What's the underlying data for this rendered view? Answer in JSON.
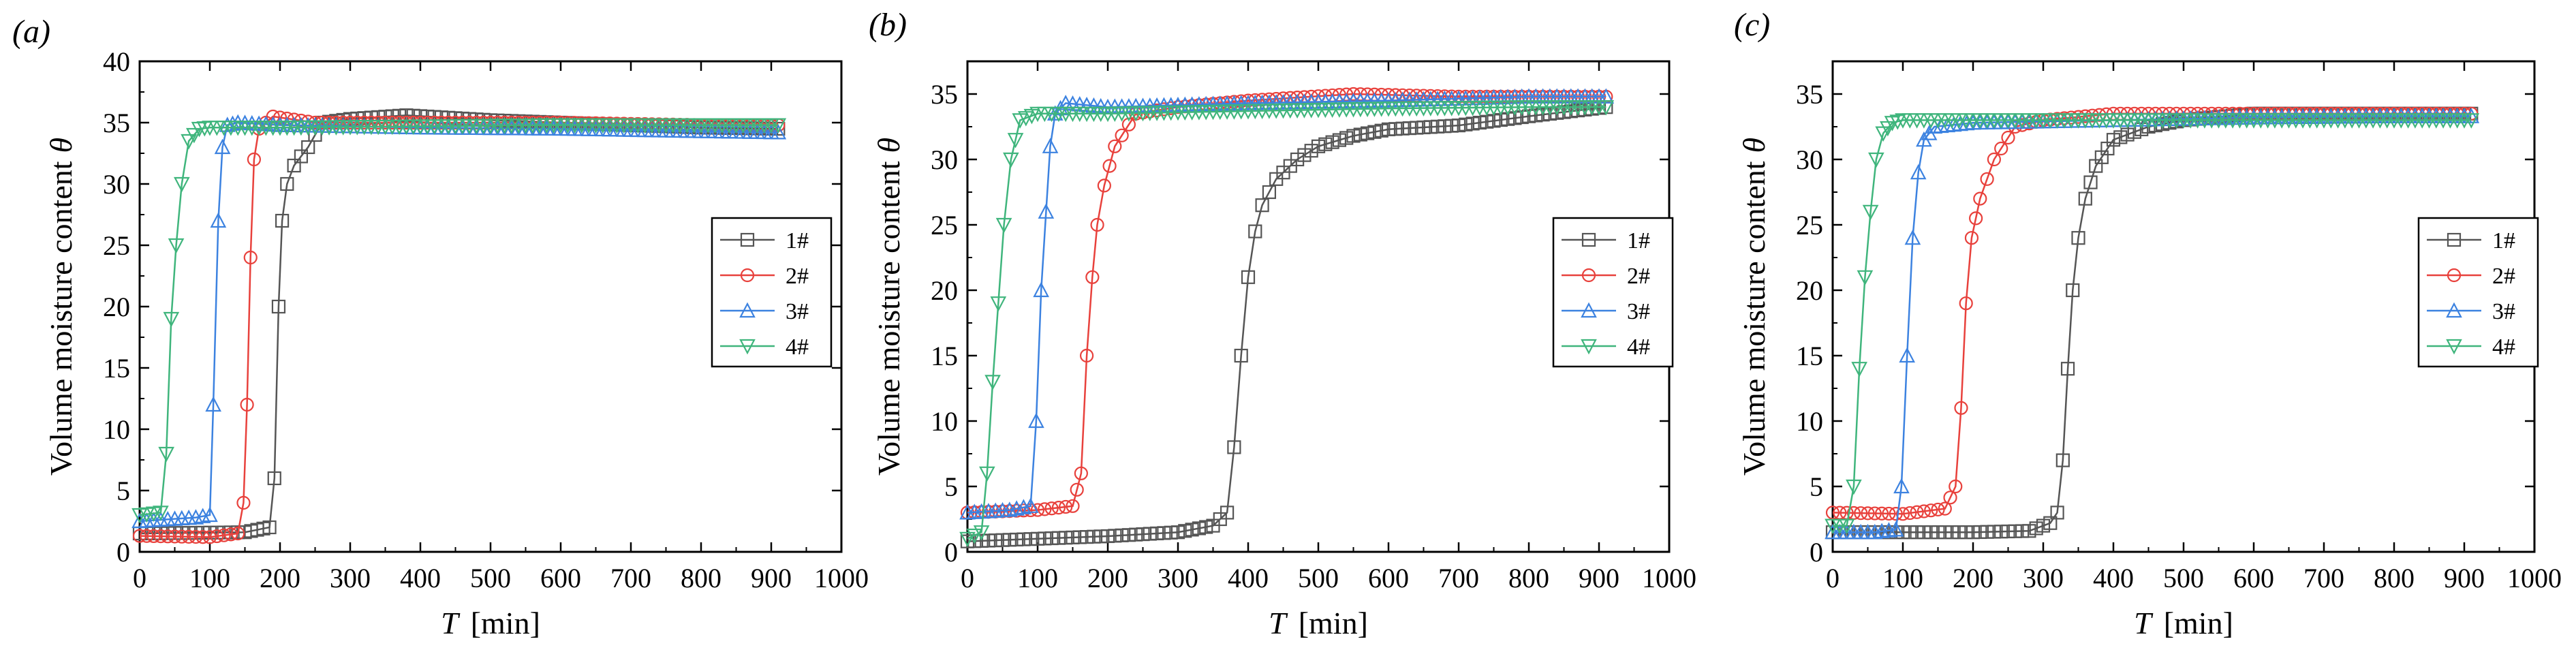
{
  "chart_data": [
    {
      "type": "line",
      "panel_label": "(a)",
      "xlabel_var": "T",
      "xlabel_unit": "[min]",
      "ylabel_text": "Volume moisture content",
      "ylabel_var": "θ",
      "xlim": [
        0,
        1000
      ],
      "ylim": [
        0,
        40
      ],
      "xticks": [
        0,
        100,
        200,
        300,
        400,
        500,
        600,
        700,
        800,
        900,
        1000
      ],
      "yticks": [
        0,
        5,
        10,
        15,
        20,
        25,
        30,
        35,
        40
      ],
      "legend_position": "right",
      "grid": false,
      "series": [
        {
          "name": "1#",
          "color": "#555555",
          "marker": "square",
          "x": [
            0,
            150,
            185,
            192,
            198,
            203,
            210,
            220,
            240,
            260,
            300,
            380,
            500,
            600,
            700,
            800,
            910
          ],
          "y": [
            1.5,
            1.6,
            2.0,
            6.0,
            20.0,
            27.0,
            30.0,
            31.5,
            33.0,
            35.0,
            35.3,
            35.6,
            35.2,
            35.0,
            34.8,
            34.6,
            34.5
          ]
        },
        {
          "name": "2#",
          "color": "#e8413c",
          "marker": "circle",
          "x": [
            0,
            100,
            140,
            148,
            153,
            158,
            163,
            170,
            190,
            250,
            400,
            600,
            800,
            910
          ],
          "y": [
            1.3,
            1.2,
            1.5,
            4.0,
            12.0,
            24.0,
            32.0,
            34.5,
            35.5,
            35.0,
            35.0,
            35.0,
            34.8,
            34.8
          ]
        },
        {
          "name": "3#",
          "color": "#3c82e0",
          "marker": "triangle-up",
          "x": [
            0,
            80,
            100,
            105,
            112,
            118,
            125,
            140,
            200,
            400,
            600,
            800,
            910
          ],
          "y": [
            2.5,
            2.8,
            3.0,
            12.0,
            27.0,
            33.0,
            34.8,
            35.0,
            34.8,
            34.6,
            34.5,
            34.3,
            34.2
          ]
        },
        {
          "name": "4#",
          "color": "#3fb57c",
          "marker": "triangle-down",
          "x": [
            0,
            30,
            38,
            45,
            52,
            60,
            70,
            85,
            100,
            200,
            400,
            600,
            800,
            910
          ],
          "y": [
            3.0,
            3.2,
            8.0,
            19.0,
            25.0,
            30.0,
            33.5,
            34.5,
            34.6,
            34.6,
            34.7,
            34.8,
            34.8,
            34.8
          ]
        }
      ]
    },
    {
      "type": "line",
      "panel_label": "(b)",
      "xlabel_var": "T",
      "xlabel_unit": "[min]",
      "ylabel_text": "Volume moisture content",
      "ylabel_var": "θ",
      "xlim": [
        0,
        1000
      ],
      "ylim": [
        0,
        37.5
      ],
      "xticks": [
        0,
        100,
        200,
        300,
        400,
        500,
        600,
        700,
        800,
        900,
        1000
      ],
      "yticks": [
        0,
        5,
        10,
        15,
        20,
        25,
        30,
        35
      ],
      "legend_position": "right",
      "grid": false,
      "series": [
        {
          "name": "1#",
          "color": "#555555",
          "marker": "square",
          "x": [
            0,
            100,
            200,
            300,
            350,
            370,
            380,
            390,
            400,
            410,
            420,
            440,
            470,
            500,
            550,
            600,
            700,
            800,
            910
          ],
          "y": [
            0.8,
            1.0,
            1.2,
            1.5,
            2.0,
            3.0,
            8.0,
            15.0,
            21.0,
            24.5,
            26.5,
            28.5,
            30.0,
            31.0,
            31.8,
            32.3,
            32.6,
            33.3,
            34.0
          ]
        },
        {
          "name": "2#",
          "color": "#e8413c",
          "marker": "circle",
          "x": [
            0,
            100,
            150,
            162,
            170,
            178,
            185,
            195,
            210,
            240,
            300,
            400,
            550,
            700,
            800,
            910
          ],
          "y": [
            3.0,
            3.2,
            3.5,
            6.0,
            15.0,
            21.0,
            25.0,
            28.0,
            31.0,
            33.5,
            34.0,
            34.5,
            35.0,
            34.8,
            34.8,
            34.8
          ]
        },
        {
          "name": "3#",
          "color": "#3c82e0",
          "marker": "triangle-up",
          "x": [
            0,
            60,
            90,
            98,
            105,
            112,
            118,
            125,
            140,
            200,
            400,
            600,
            800,
            910
          ],
          "y": [
            3.0,
            3.2,
            3.5,
            10.0,
            20.0,
            26.0,
            31.0,
            33.5,
            34.3,
            34.0,
            34.3,
            34.5,
            34.8,
            34.8
          ]
        },
        {
          "name": "4#",
          "color": "#3fb57c",
          "marker": "triangle-down",
          "x": [
            0,
            20,
            28,
            36,
            44,
            52,
            62,
            75,
            100,
            200,
            400,
            600,
            800,
            910
          ],
          "y": [
            1.0,
            1.5,
            6.0,
            13.0,
            19.0,
            25.0,
            30.0,
            33.0,
            33.5,
            33.5,
            33.7,
            33.9,
            34.0,
            34.0
          ]
        }
      ]
    },
    {
      "type": "line",
      "panel_label": "(c)",
      "xlabel_var": "T",
      "xlabel_unit": "[min]",
      "ylabel_text": "Volume moisture content",
      "ylabel_var": "θ",
      "xlim": [
        0,
        1000
      ],
      "ylim": [
        0,
        37.5
      ],
      "xticks": [
        0,
        100,
        200,
        300,
        400,
        500,
        600,
        700,
        800,
        900,
        1000
      ],
      "yticks": [
        0,
        5,
        10,
        15,
        20,
        25,
        30,
        35
      ],
      "legend_position": "right",
      "grid": false,
      "series": [
        {
          "name": "1#",
          "color": "#555555",
          "marker": "square",
          "x": [
            0,
            100,
            200,
            280,
            310,
            320,
            328,
            335,
            342,
            350,
            360,
            375,
            400,
            450,
            500,
            600,
            700,
            800,
            910
          ],
          "y": [
            1.5,
            1.5,
            1.5,
            1.6,
            2.2,
            3.0,
            7.0,
            14.0,
            20.0,
            24.0,
            27.0,
            29.5,
            31.5,
            32.5,
            33.0,
            33.5,
            33.5,
            33.5,
            33.5
          ]
        },
        {
          "name": "2#",
          "color": "#e8413c",
          "marker": "circle",
          "x": [
            0,
            100,
            160,
            175,
            183,
            190,
            198,
            210,
            230,
            260,
            300,
            400,
            600,
            800,
            910
          ],
          "y": [
            3.0,
            2.9,
            3.3,
            5.0,
            11.0,
            19.0,
            24.0,
            27.0,
            30.0,
            32.5,
            33.0,
            33.5,
            33.5,
            33.5,
            33.5
          ]
        },
        {
          "name": "3#",
          "color": "#3c82e0",
          "marker": "triangle-up",
          "x": [
            0,
            60,
            90,
            98,
            106,
            114,
            122,
            130,
            145,
            200,
            400,
            600,
            800,
            910
          ],
          "y": [
            1.5,
            1.5,
            1.7,
            5.0,
            15.0,
            24.0,
            29.0,
            31.5,
            32.5,
            32.8,
            33.0,
            33.2,
            33.3,
            33.3
          ]
        },
        {
          "name": "4#",
          "color": "#3fb57c",
          "marker": "triangle-down",
          "x": [
            0,
            20,
            30,
            38,
            46,
            54,
            62,
            72,
            85,
            100,
            200,
            400,
            600,
            800,
            910
          ],
          "y": [
            2.0,
            2.0,
            5.0,
            14.0,
            21.0,
            26.0,
            30.0,
            32.0,
            32.8,
            33.0,
            33.0,
            33.0,
            33.0,
            33.0,
            33.0
          ]
        }
      ]
    }
  ]
}
